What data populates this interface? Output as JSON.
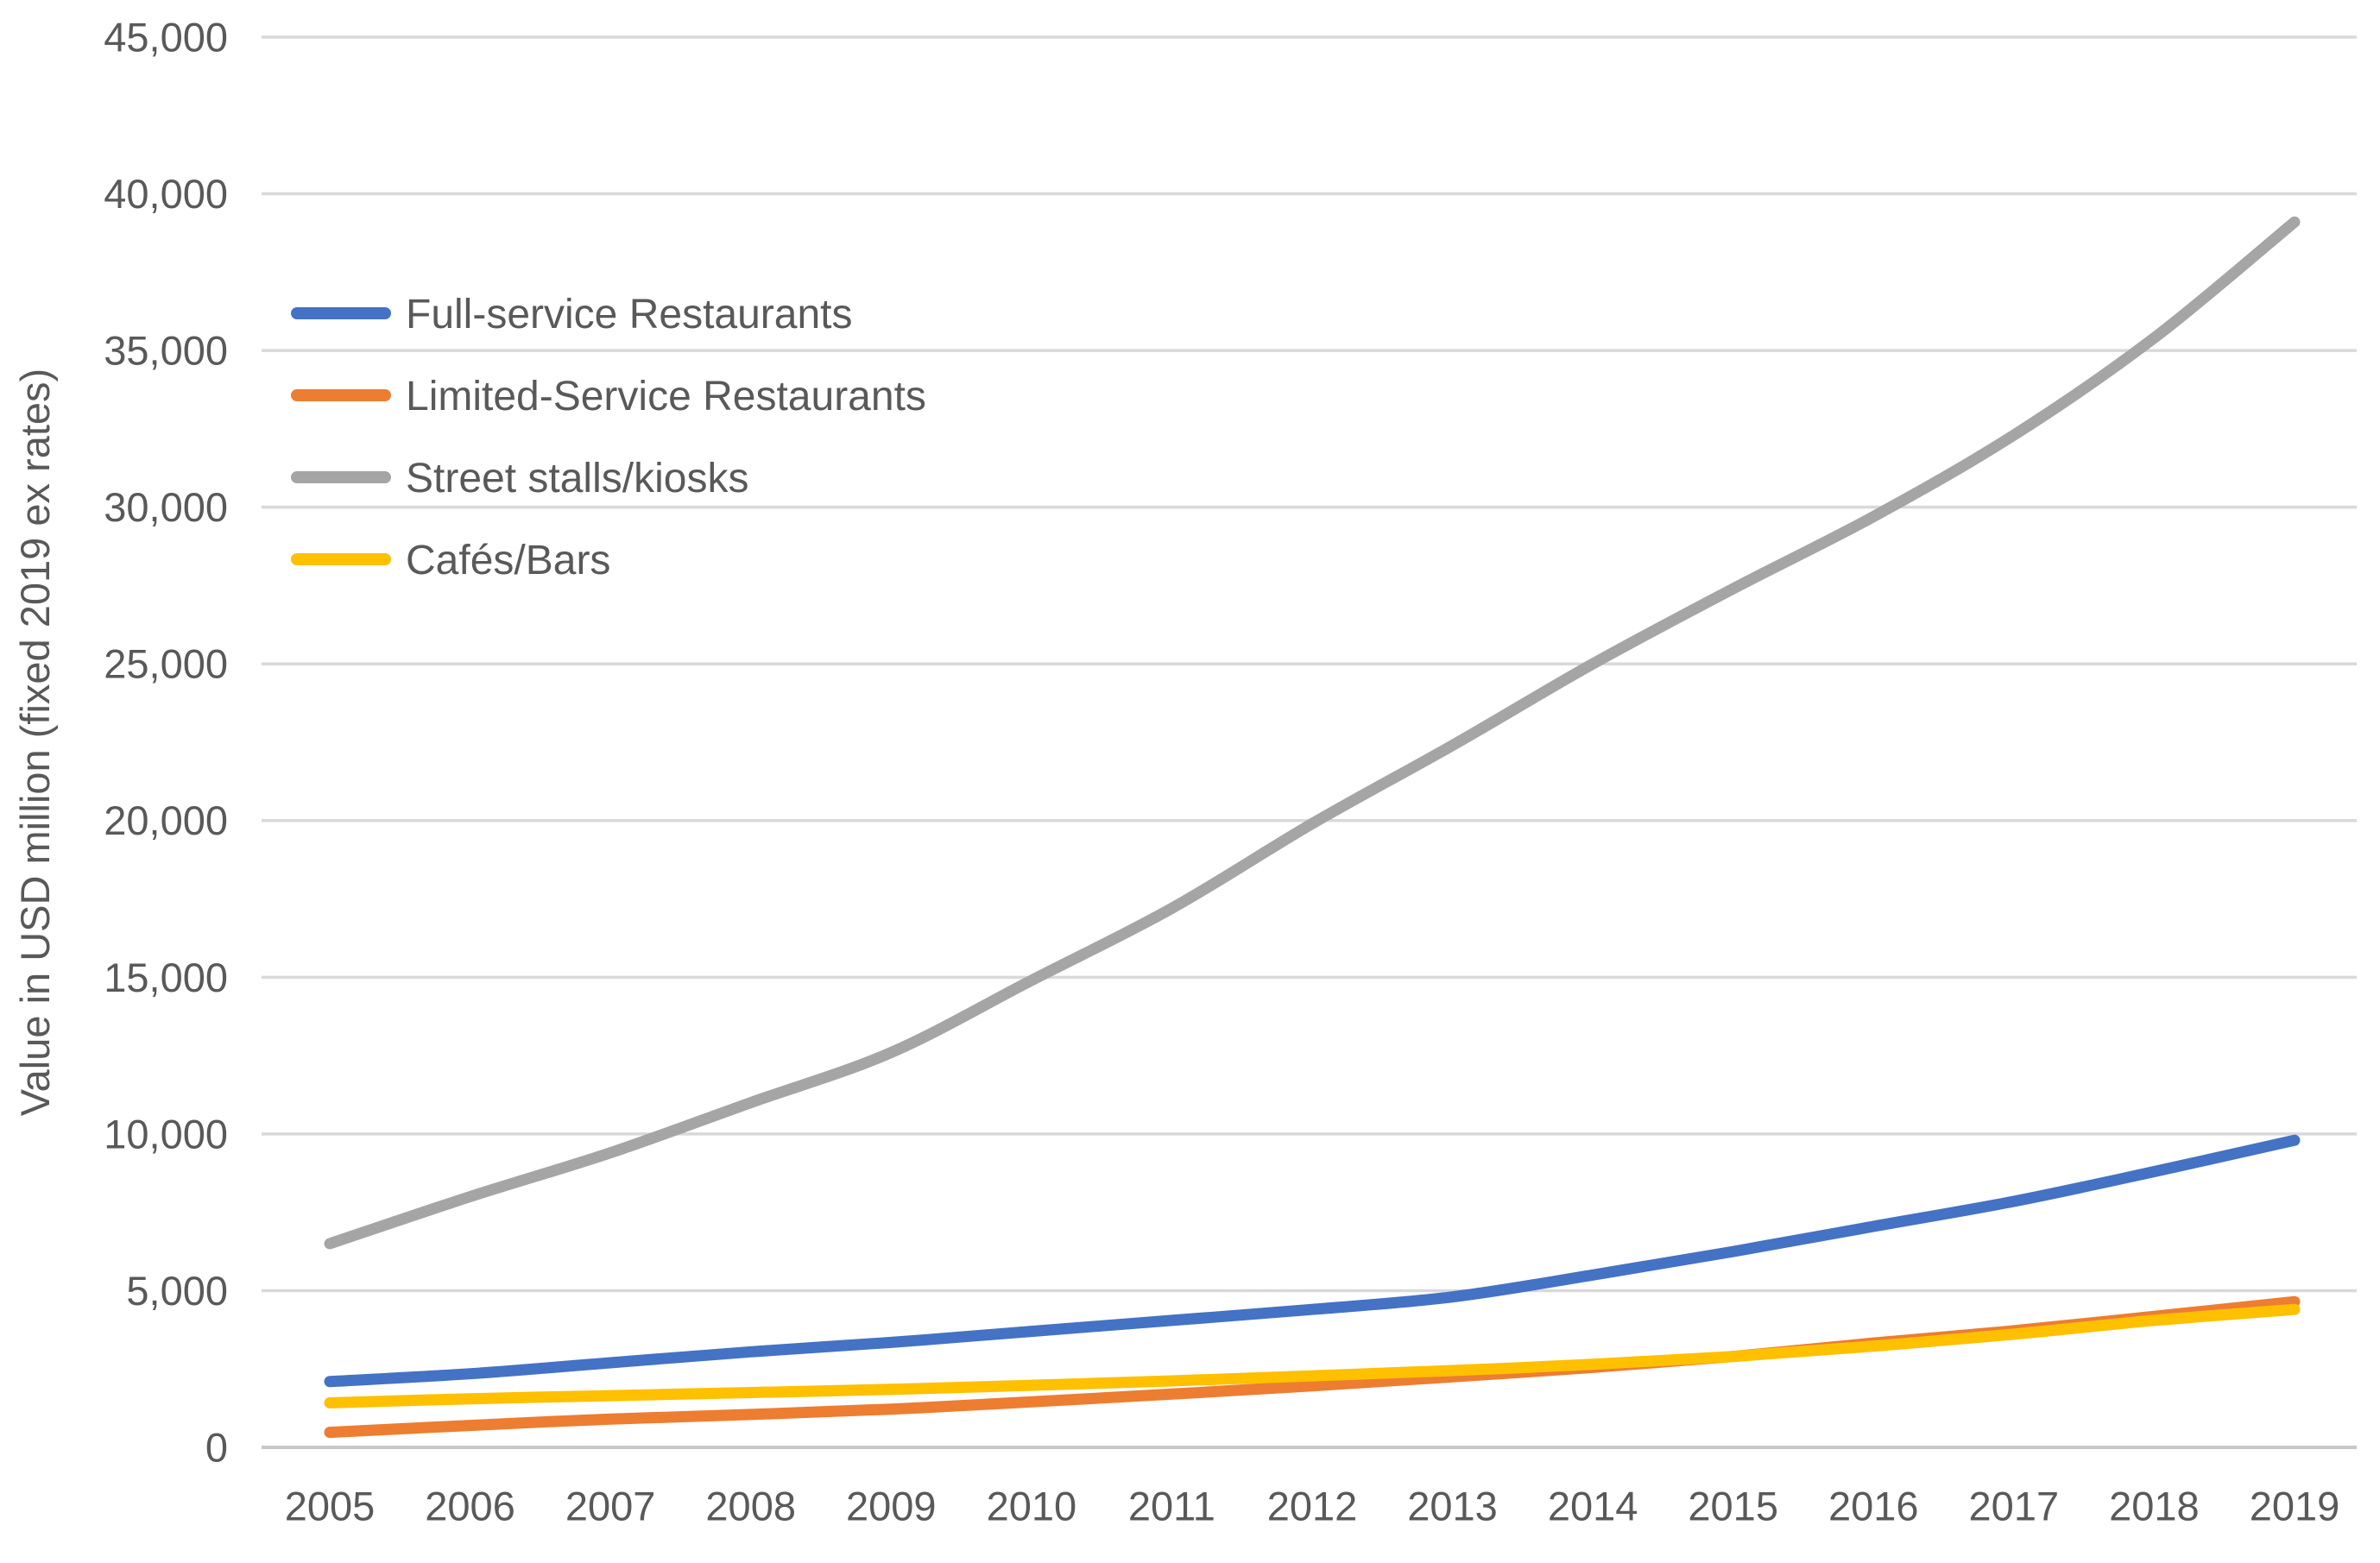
{
  "chart_data": {
    "type": "line",
    "title": "",
    "xlabel": "",
    "ylabel": "Value in USD million (fixed 2019 ex rates)",
    "x": [
      "2005",
      "2006",
      "2007",
      "2008",
      "2009",
      "2010",
      "2011",
      "2012",
      "2013",
      "2014",
      "2015",
      "2016",
      "2017",
      "2018",
      "2019"
    ],
    "series": [
      {
        "name": "Full-service Restaurants",
        "color": "#4472C4",
        "values": [
          2100,
          2350,
          2700,
          3050,
          3350,
          3700,
          4050,
          4400,
          4800,
          5500,
          6250,
          7050,
          7850,
          8800,
          9800
        ]
      },
      {
        "name": "Limited-Service Restaurants",
        "color": "#ED7D31",
        "values": [
          480,
          700,
          900,
          1050,
          1220,
          1450,
          1700,
          1960,
          2250,
          2550,
          2900,
          3330,
          3720,
          4180,
          4650
        ]
      },
      {
        "name": "Street stalls/kiosks",
        "color": "#A5A5A5",
        "values": [
          6500,
          8000,
          9400,
          11000,
          12600,
          14900,
          17200,
          19900,
          22400,
          25000,
          27400,
          29700,
          32300,
          35400,
          39100
        ]
      },
      {
        "name": "Cafés/Bars",
        "color": "#FFC000",
        "values": [
          1420,
          1550,
          1650,
          1750,
          1850,
          1980,
          2120,
          2280,
          2450,
          2650,
          2900,
          3230,
          3610,
          4050,
          4400
        ]
      }
    ],
    "ylim": [
      0,
      45000
    ],
    "ytick_step": 5000,
    "ytick_labels": [
      "0",
      "5,000",
      "10,000",
      "15,000",
      "20,000",
      "25,000",
      "30,000",
      "35,000",
      "40,000",
      "45,000"
    ],
    "grid": true,
    "legend_position": "upper-left-inside",
    "legend_order": [
      "Full-service Restaurants",
      "Limited-Service Restaurants",
      "Street stalls/kiosks",
      "Cafés/Bars"
    ]
  },
  "colors": {
    "background": "#FFFFFF",
    "gridline": "#D9D9D9",
    "zero_line": "#C8C8C8",
    "tick_text": "#595959",
    "legend_text": "#595959",
    "axis_title_text": "#595959"
  }
}
